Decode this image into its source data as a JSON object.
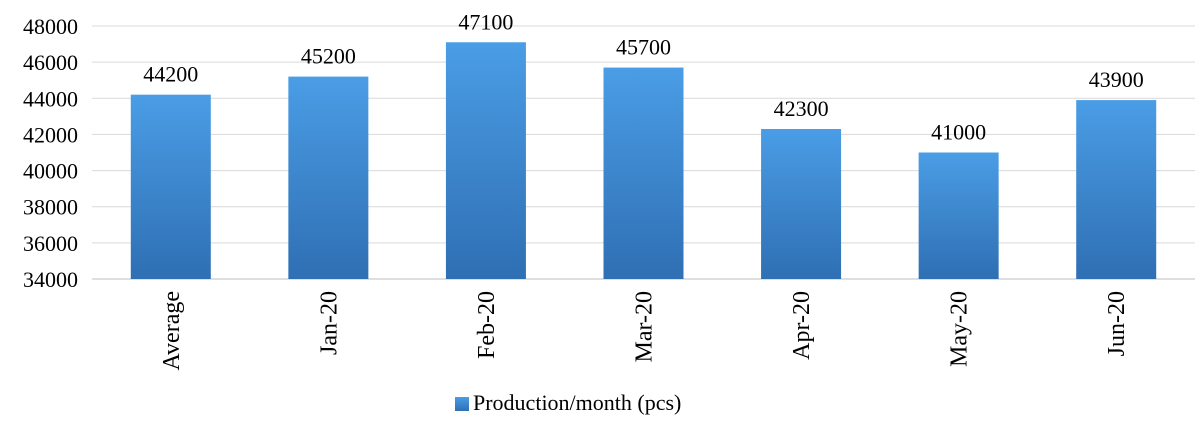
{
  "chart_data": {
    "type": "bar",
    "title": "",
    "xlabel": "",
    "ylabel": "",
    "categories": [
      "Average",
      "Jan-20",
      "Feb-20",
      "Mar-20",
      "Apr-20",
      "May-20",
      "Jun-20"
    ],
    "series": [
      {
        "name": "Production/month (pcs)",
        "values": [
          44200,
          45200,
          47100,
          45700,
          42300,
          41000,
          43900
        ]
      }
    ],
    "data_labels": [
      "44200",
      "45200",
      "47100",
      "45700",
      "42300",
      "41000",
      "43900"
    ],
    "ylim": [
      34000,
      48000
    ],
    "yticks": [
      34000,
      36000,
      38000,
      40000,
      42000,
      44000,
      46000,
      48000
    ],
    "ytick_labels": [
      "34000",
      "36000",
      "38000",
      "40000",
      "42000",
      "44000",
      "46000",
      "48000"
    ],
    "grid": true,
    "legend_position": "bottom",
    "colors": {
      "bar_top": "#4a9de6",
      "bar_bottom": "#2f6fb3",
      "grid": "#d9d9d9",
      "axis": "#bfbfbf"
    }
  }
}
